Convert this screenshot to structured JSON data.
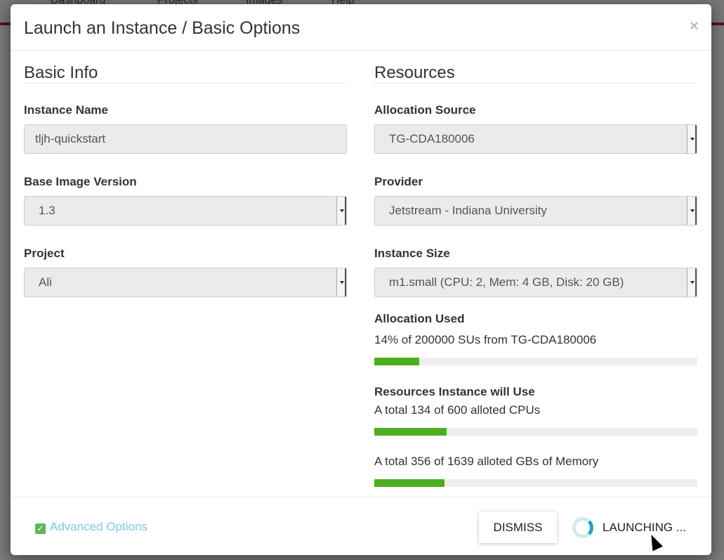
{
  "background_nav": [
    "Dashboard",
    "Projects",
    "Images",
    "Help"
  ],
  "modal": {
    "title": "Launch an Instance / Basic Options",
    "close_label": "×",
    "basic_info": {
      "heading": "Basic Info",
      "instance_name": {
        "label": "Instance Name",
        "value": "tljh-quickstart"
      },
      "base_image_version": {
        "label": "Base Image Version",
        "value": "1.3"
      },
      "project": {
        "label": "Project",
        "value": "Ali"
      }
    },
    "resources": {
      "heading": "Resources",
      "allocation_source": {
        "label": "Allocation Source",
        "value": "TG-CDA180006"
      },
      "provider": {
        "label": "Provider",
        "value": "Jetstream - Indiana University"
      },
      "instance_size": {
        "label": "Instance Size",
        "value": "m1.small (CPU: 2, Mem: 4 GB, Disk: 20 GB)"
      },
      "allocation_used": {
        "label": "Allocation Used",
        "text": "14% of 200000 SUs from TG-CDA180006",
        "percent": 14
      },
      "instance_will_use": {
        "label": "Resources Instance will Use",
        "cpus": {
          "text": "A total 134 of 600 alloted CPUs",
          "percent": 22.3
        },
        "memory": {
          "text": "A total 356 of 1639 alloted GBs of Memory",
          "percent": 21.7
        }
      }
    },
    "footer": {
      "advanced_options": "Advanced Options",
      "dismiss": "DISMISS",
      "launching": "LAUNCHING ..."
    }
  },
  "colors": {
    "progress": "#4caf20",
    "link": "#7ec8df",
    "check": "#5cb85c",
    "spinner": "#2aa0b8"
  }
}
